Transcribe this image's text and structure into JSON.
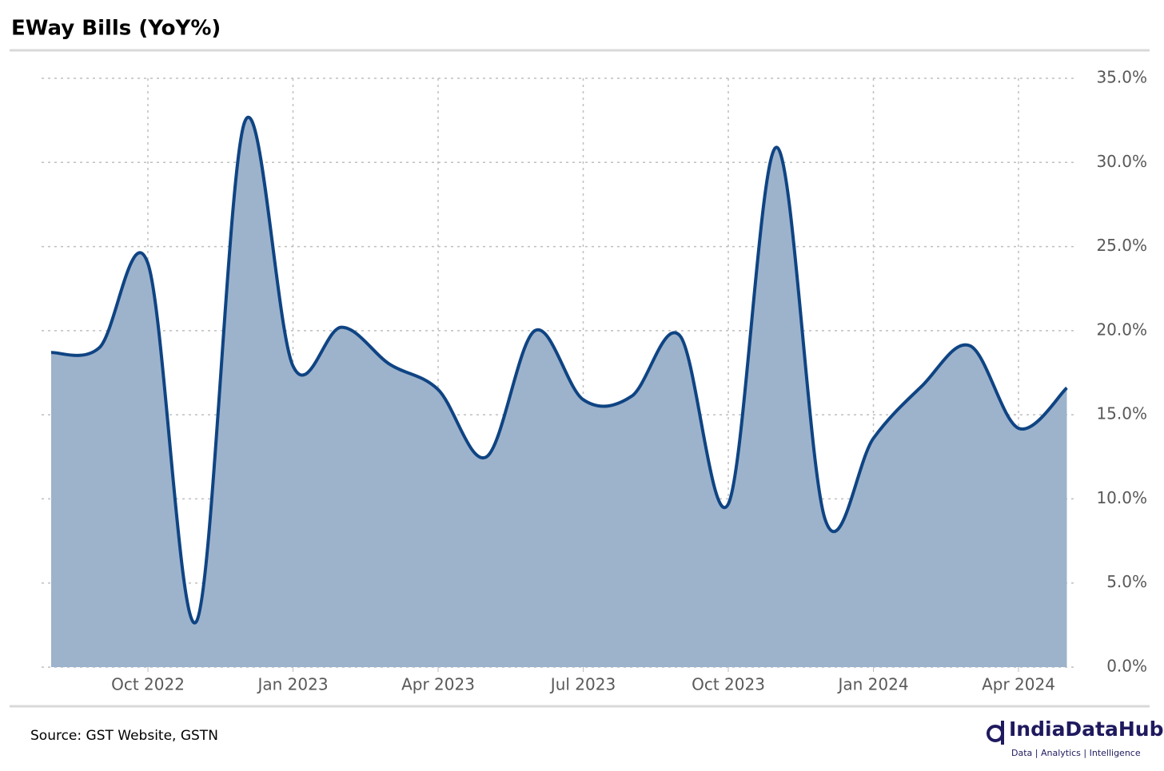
{
  "chart_data": {
    "type": "area",
    "title": "EWay Bills (YoY%)",
    "x": [
      "Aug 2022",
      "Sep 2022",
      "Oct 2022",
      "Nov 2022",
      "Dec 2022",
      "Jan 2023",
      "Feb 2023",
      "Mar 2023",
      "Apr 2023",
      "May 2023",
      "Jun 2023",
      "Jul 2023",
      "Aug 2023",
      "Sep 2023",
      "Oct 2023",
      "Nov 2023",
      "Dec 2023",
      "Jan 2024",
      "Feb 2024",
      "Mar 2024",
      "Apr 2024",
      "May 2024"
    ],
    "values": [
      18.7,
      19.0,
      24.0,
      2.7,
      32.4,
      17.9,
      20.2,
      18.0,
      16.5,
      12.5,
      20.0,
      15.9,
      16.1,
      19.7,
      9.7,
      30.9,
      8.8,
      13.6,
      16.7,
      19.1,
      14.2,
      16.6
    ],
    "color": "#0f4483",
    "fill": "#9db3cc",
    "xticks": [
      "Oct 2022",
      "Jan 2023",
      "Apr 2023",
      "Jul 2023",
      "Oct 2023",
      "Jan 2024",
      "Apr 2024"
    ],
    "ylim": [
      0,
      35
    ],
    "yticks": [
      {
        "value": 0,
        "label": "0.0%"
      },
      {
        "value": 5,
        "label": "5.0%"
      },
      {
        "value": 10,
        "label": "10.0%"
      },
      {
        "value": 15,
        "label": "15.0%"
      },
      {
        "value": 20,
        "label": "20.0%"
      },
      {
        "value": 25,
        "label": "25.0%"
      },
      {
        "value": 30,
        "label": "30.0%"
      },
      {
        "value": 35,
        "label": "35.0%"
      }
    ],
    "grid": true
  },
  "footer": {
    "source": "Source: GST Website, GSTN",
    "brand": "IndiaDataHub",
    "tagline": "Data | Analytics | Intelligence"
  }
}
